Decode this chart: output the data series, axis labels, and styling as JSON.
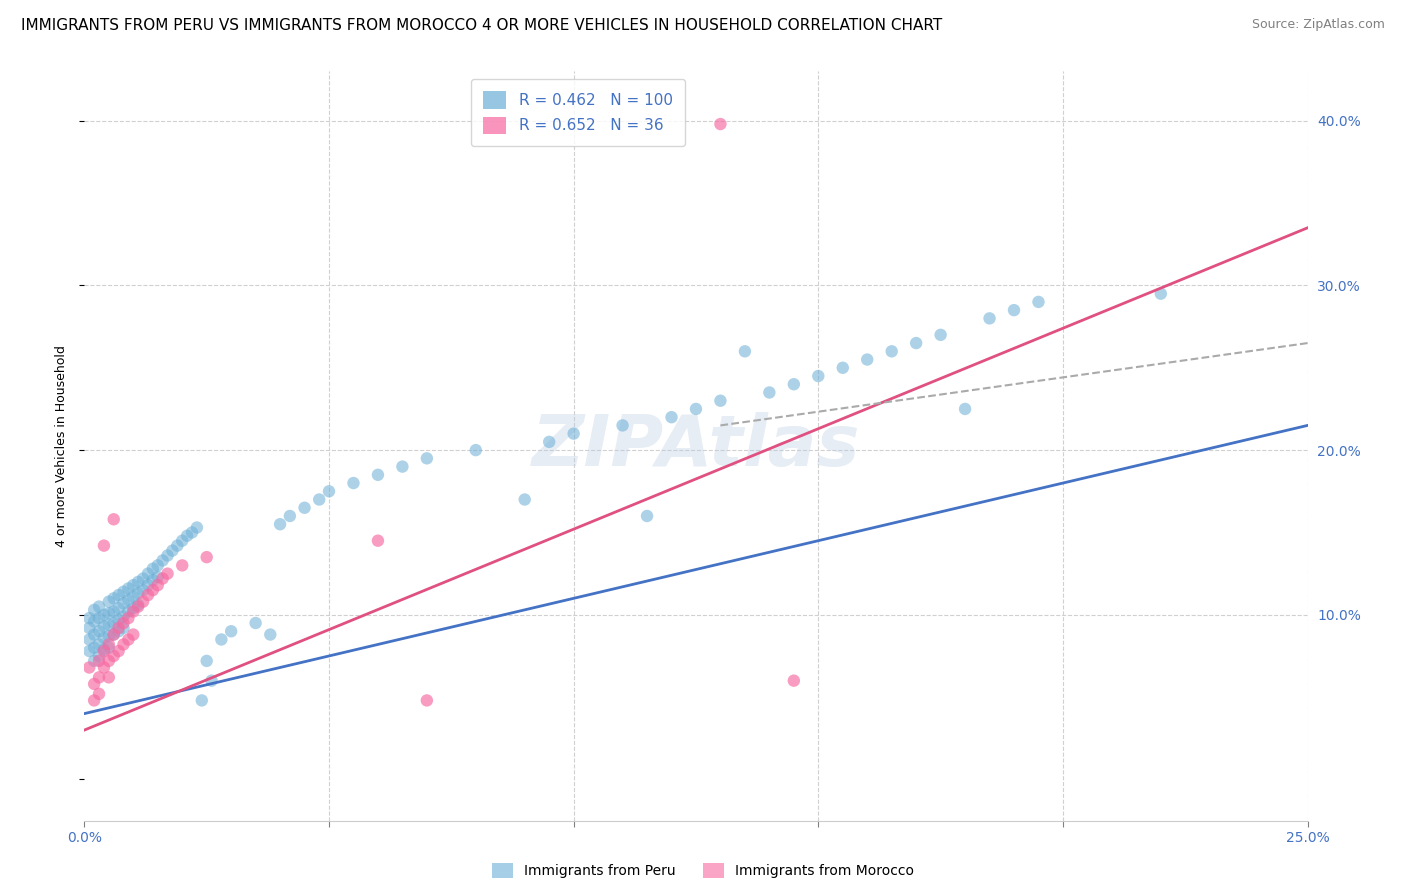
{
  "title": "IMMIGRANTS FROM PERU VS IMMIGRANTS FROM MOROCCO 4 OR MORE VEHICLES IN HOUSEHOLD CORRELATION CHART",
  "source": "Source: ZipAtlas.com",
  "ylabel": "4 or more Vehicles in Household",
  "xlim": [
    0.0,
    0.25
  ],
  "ylim": [
    -0.025,
    0.43
  ],
  "xticks": [
    0.0,
    0.05,
    0.1,
    0.15,
    0.2,
    0.25
  ],
  "xtick_labels_show": [
    "0.0%",
    "",
    "",
    "",
    "",
    "25.0%"
  ],
  "yticks": [
    0.0,
    0.1,
    0.2,
    0.3,
    0.4
  ],
  "ytick_labels": [
    "",
    "10.0%",
    "20.0%",
    "30.0%",
    "40.0%"
  ],
  "peru_color": "#6baed6",
  "morocco_color": "#f768a1",
  "peru_R": 0.462,
  "peru_N": 100,
  "morocco_R": 0.652,
  "morocco_N": 36,
  "legend_label_peru": "Immigrants from Peru",
  "legend_label_morocco": "Immigrants from Morocco",
  "watermark": "ZIPAtlas",
  "peru_scatter": [
    [
      0.001,
      0.098
    ],
    [
      0.001,
      0.092
    ],
    [
      0.001,
      0.085
    ],
    [
      0.001,
      0.078
    ],
    [
      0.002,
      0.103
    ],
    [
      0.002,
      0.096
    ],
    [
      0.002,
      0.088
    ],
    [
      0.002,
      0.08
    ],
    [
      0.002,
      0.072
    ],
    [
      0.003,
      0.105
    ],
    [
      0.003,
      0.098
    ],
    [
      0.003,
      0.09
    ],
    [
      0.003,
      0.082
    ],
    [
      0.003,
      0.075
    ],
    [
      0.004,
      0.1
    ],
    [
      0.004,
      0.093
    ],
    [
      0.004,
      0.086
    ],
    [
      0.004,
      0.079
    ],
    [
      0.005,
      0.108
    ],
    [
      0.005,
      0.101
    ],
    [
      0.005,
      0.094
    ],
    [
      0.005,
      0.087
    ],
    [
      0.005,
      0.08
    ],
    [
      0.006,
      0.11
    ],
    [
      0.006,
      0.102
    ],
    [
      0.006,
      0.095
    ],
    [
      0.006,
      0.088
    ],
    [
      0.007,
      0.112
    ],
    [
      0.007,
      0.104
    ],
    [
      0.007,
      0.097
    ],
    [
      0.007,
      0.09
    ],
    [
      0.008,
      0.114
    ],
    [
      0.008,
      0.107
    ],
    [
      0.008,
      0.099
    ],
    [
      0.008,
      0.092
    ],
    [
      0.009,
      0.116
    ],
    [
      0.009,
      0.109
    ],
    [
      0.009,
      0.102
    ],
    [
      0.01,
      0.118
    ],
    [
      0.01,
      0.111
    ],
    [
      0.01,
      0.104
    ],
    [
      0.011,
      0.12
    ],
    [
      0.011,
      0.113
    ],
    [
      0.011,
      0.106
    ],
    [
      0.012,
      0.122
    ],
    [
      0.012,
      0.115
    ],
    [
      0.013,
      0.125
    ],
    [
      0.013,
      0.118
    ],
    [
      0.014,
      0.128
    ],
    [
      0.014,
      0.121
    ],
    [
      0.015,
      0.13
    ],
    [
      0.015,
      0.123
    ],
    [
      0.016,
      0.133
    ],
    [
      0.017,
      0.136
    ],
    [
      0.018,
      0.139
    ],
    [
      0.019,
      0.142
    ],
    [
      0.02,
      0.145
    ],
    [
      0.021,
      0.148
    ],
    [
      0.022,
      0.15
    ],
    [
      0.023,
      0.153
    ],
    [
      0.024,
      0.048
    ],
    [
      0.025,
      0.072
    ],
    [
      0.026,
      0.06
    ],
    [
      0.028,
      0.085
    ],
    [
      0.03,
      0.09
    ],
    [
      0.035,
      0.095
    ],
    [
      0.038,
      0.088
    ],
    [
      0.04,
      0.155
    ],
    [
      0.042,
      0.16
    ],
    [
      0.045,
      0.165
    ],
    [
      0.048,
      0.17
    ],
    [
      0.05,
      0.175
    ],
    [
      0.055,
      0.18
    ],
    [
      0.06,
      0.185
    ],
    [
      0.065,
      0.19
    ],
    [
      0.07,
      0.195
    ],
    [
      0.08,
      0.2
    ],
    [
      0.09,
      0.17
    ],
    [
      0.095,
      0.205
    ],
    [
      0.1,
      0.21
    ],
    [
      0.11,
      0.215
    ],
    [
      0.115,
      0.16
    ],
    [
      0.12,
      0.22
    ],
    [
      0.125,
      0.225
    ],
    [
      0.13,
      0.23
    ],
    [
      0.135,
      0.26
    ],
    [
      0.14,
      0.235
    ],
    [
      0.145,
      0.24
    ],
    [
      0.15,
      0.245
    ],
    [
      0.155,
      0.25
    ],
    [
      0.16,
      0.255
    ],
    [
      0.165,
      0.26
    ],
    [
      0.17,
      0.265
    ],
    [
      0.175,
      0.27
    ],
    [
      0.18,
      0.225
    ],
    [
      0.185,
      0.28
    ],
    [
      0.19,
      0.285
    ],
    [
      0.195,
      0.29
    ],
    [
      0.22,
      0.295
    ]
  ],
  "morocco_scatter": [
    [
      0.001,
      0.068
    ],
    [
      0.002,
      0.058
    ],
    [
      0.002,
      0.048
    ],
    [
      0.003,
      0.072
    ],
    [
      0.003,
      0.062
    ],
    [
      0.003,
      0.052
    ],
    [
      0.004,
      0.078
    ],
    [
      0.004,
      0.068
    ],
    [
      0.004,
      0.142
    ],
    [
      0.005,
      0.082
    ],
    [
      0.005,
      0.072
    ],
    [
      0.005,
      0.062
    ],
    [
      0.006,
      0.088
    ],
    [
      0.006,
      0.075
    ],
    [
      0.006,
      0.158
    ],
    [
      0.007,
      0.092
    ],
    [
      0.007,
      0.078
    ],
    [
      0.008,
      0.095
    ],
    [
      0.008,
      0.082
    ],
    [
      0.009,
      0.098
    ],
    [
      0.009,
      0.085
    ],
    [
      0.01,
      0.102
    ],
    [
      0.01,
      0.088
    ],
    [
      0.011,
      0.105
    ],
    [
      0.012,
      0.108
    ],
    [
      0.013,
      0.112
    ],
    [
      0.014,
      0.115
    ],
    [
      0.015,
      0.118
    ],
    [
      0.016,
      0.122
    ],
    [
      0.017,
      0.125
    ],
    [
      0.02,
      0.13
    ],
    [
      0.025,
      0.135
    ],
    [
      0.145,
      0.06
    ],
    [
      0.13,
      0.398
    ],
    [
      0.06,
      0.145
    ],
    [
      0.07,
      0.048
    ]
  ],
  "peru_line_x": [
    0.0,
    0.25
  ],
  "peru_line_y": [
    0.04,
    0.215
  ],
  "morocco_line_x": [
    0.0,
    0.25
  ],
  "morocco_line_y": [
    0.03,
    0.335
  ],
  "dashed_line_x": [
    0.13,
    0.25
  ],
  "dashed_line_y": [
    0.215,
    0.265
  ],
  "peru_line_color": "#4472c4",
  "morocco_line_color": "#e05080",
  "dashed_line_color": "#aaaaaa",
  "axis_color": "#4472c4",
  "tick_color": "#4472c4",
  "grid_color": "#d0d0d0",
  "title_fontsize": 11,
  "axis_label_fontsize": 9,
  "tick_fontsize": 10,
  "legend_fontsize": 11,
  "source_fontsize": 9
}
